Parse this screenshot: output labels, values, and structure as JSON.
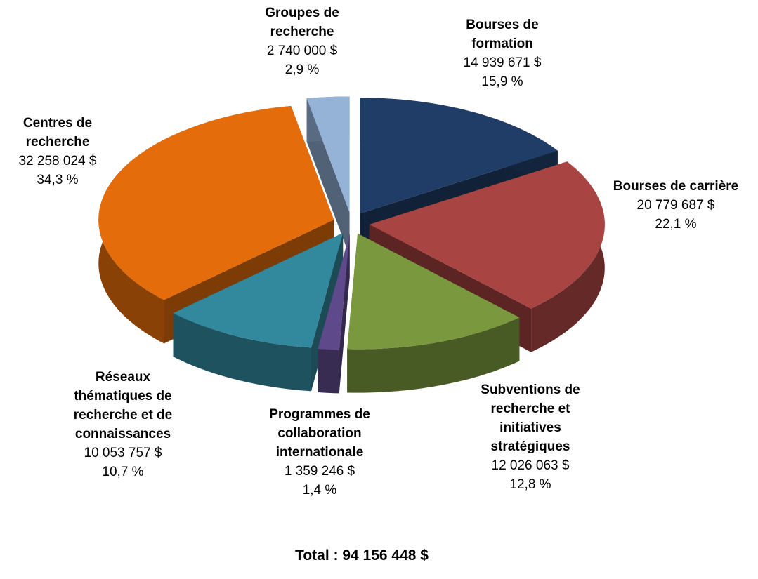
{
  "chart_data": {
    "type": "pie3d",
    "categories": [
      "Bourses de formation",
      "Bourses de carrière",
      "Subventions de recherche et initiatives stratégiques",
      "Programmes de collaboration internationale",
      "Réseaux thématiques de recherche et de connaissances",
      "Centres de recherche",
      "Groupes de recherche"
    ],
    "values": [
      14939671,
      20779687,
      12026063,
      1359246,
      10053757,
      32258024,
      2740000
    ],
    "value_labels": [
      "14 939 671  $",
      "20 779 687  $",
      "12 026 063  $",
      "1 359 246  $",
      "10 053 757  $",
      "32 258 024  $",
      "2 740 000  $"
    ],
    "percent_labels": [
      "15,9 %",
      "22,1 %",
      "12,8 %",
      "1,4 %",
      "10,7 %",
      "34,3 %",
      "2,9 %"
    ],
    "colors": [
      "#1f3d66",
      "#a84442",
      "#7a983d",
      "#5e4a8a",
      "#32889c",
      "#e46c0a",
      "#95b3d7"
    ],
    "total": "Total : 94 156 448 $"
  }
}
